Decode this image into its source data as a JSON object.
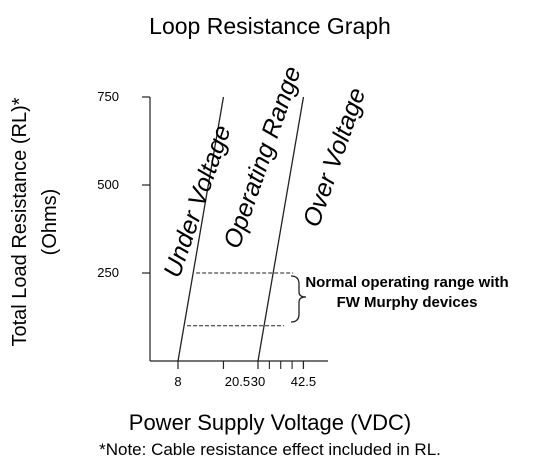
{
  "chart_data": {
    "type": "line",
    "title": "Loop Resistance Graph",
    "ylabel_line1": "Total Load Resistance (RL)*",
    "ylabel_line2": "(Ohms)",
    "xlabel": "Power Supply Voltage (VDC)",
    "note": "*Note: Cable resistance effect included in RL.",
    "x_ticks": [
      8,
      20.5,
      30,
      42.5
    ],
    "y_ticks": [
      250,
      500,
      750
    ],
    "xlim": [
      0,
      47
    ],
    "ylim": [
      0,
      800
    ],
    "series": [
      {
        "x": [
          8,
          20.5
        ],
        "y": [
          0,
          750
        ]
      },
      {
        "x": [
          30,
          42.5
        ],
        "y": [
          0,
          750
        ]
      }
    ],
    "regions": [
      "Under Voltage",
      "Operating Range",
      "Over Voltage"
    ],
    "operating_band": {
      "y_values": [
        250,
        100
      ]
    },
    "annotation": {
      "line1": "Normal operating range with",
      "line2": "FW Murphy devices"
    },
    "grid": false,
    "legend": "none"
  }
}
